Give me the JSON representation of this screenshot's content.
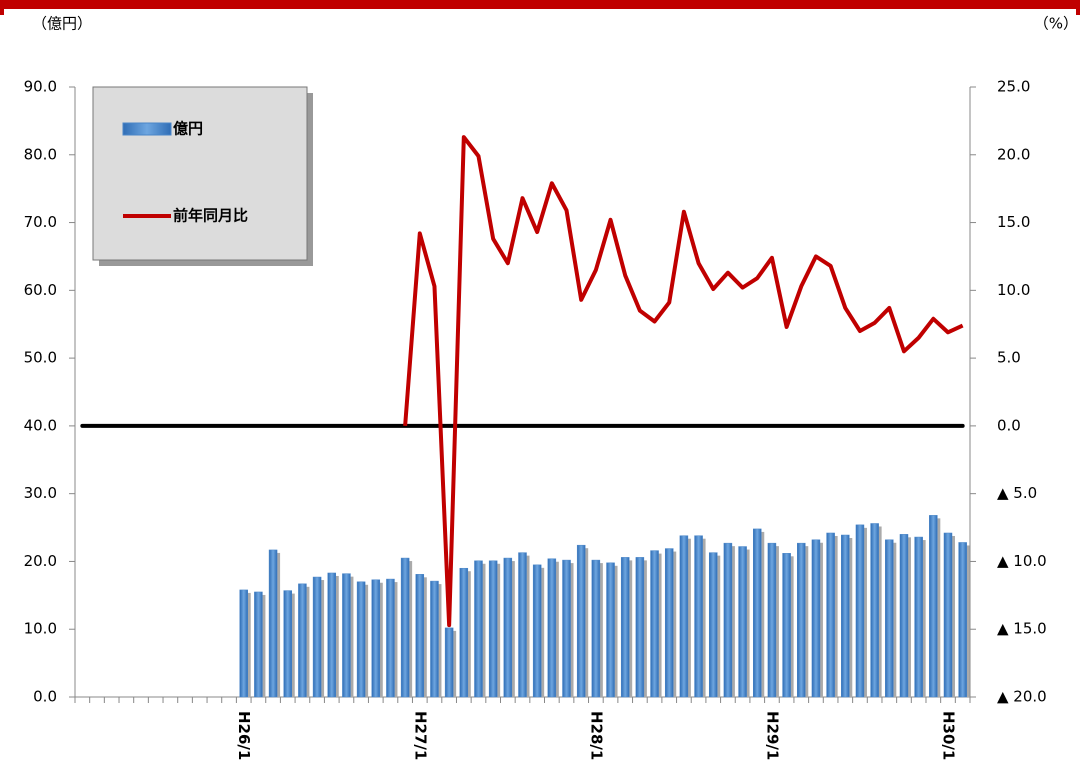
{
  "chart_data": {
    "type": "bar-line",
    "y_unit_label": "（億円）",
    "y2_unit_label": "（%）",
    "categories": [
      null,
      null,
      null,
      null,
      null,
      null,
      null,
      null,
      null,
      null,
      null,
      "H26/1",
      null,
      null,
      null,
      null,
      null,
      null,
      null,
      null,
      null,
      null,
      null,
      "H27/1",
      null,
      null,
      null,
      null,
      null,
      null,
      null,
      null,
      null,
      null,
      null,
      "H28/1",
      null,
      null,
      null,
      null,
      null,
      null,
      null,
      null,
      null,
      null,
      null,
      "H29/1",
      null,
      null,
      null,
      null,
      null,
      null,
      null,
      null,
      null,
      null,
      null,
      "H30/1",
      null
    ],
    "series": [
      {
        "name": "億円",
        "type": "bar",
        "color": "#4a86c8",
        "values": [
          null,
          null,
          null,
          null,
          null,
          null,
          null,
          null,
          null,
          null,
          null,
          15.8,
          15.5,
          21.7,
          15.7,
          16.7,
          17.7,
          18.3,
          18.2,
          17.0,
          17.3,
          17.4,
          20.5,
          18.1,
          17.1,
          10.2,
          19.0,
          20.1,
          20.1,
          20.5,
          21.3,
          19.5,
          20.4,
          20.2,
          22.4,
          20.2,
          19.8,
          20.6,
          20.6,
          21.6,
          21.9,
          23.8,
          23.8,
          21.3,
          22.7,
          22.2,
          24.8,
          22.7,
          21.2,
          22.7,
          23.2,
          24.2,
          23.9,
          25.4,
          25.6,
          23.2,
          24.0,
          23.6,
          26.8,
          24.2,
          22.8
        ]
      },
      {
        "name": "前年同月比",
        "type": "line",
        "axis": "y2",
        "color": "#c00000",
        "values": [
          null,
          null,
          null,
          null,
          null,
          null,
          null,
          null,
          null,
          null,
          null,
          null,
          null,
          null,
          null,
          null,
          null,
          null,
          null,
          null,
          null,
          null,
          0.0,
          14.2,
          10.3,
          -14.7,
          21.3,
          19.9,
          13.8,
          12.0,
          16.8,
          14.3,
          17.9,
          15.9,
          9.3,
          11.5,
          15.2,
          11.1,
          8.5,
          7.7,
          9.1,
          15.8,
          12.0,
          10.1,
          11.3,
          10.2,
          10.9,
          12.4,
          7.3,
          10.3,
          12.5,
          11.8,
          8.7,
          7.0,
          7.6,
          8.7,
          5.5,
          6.5,
          7.9,
          6.9,
          7.4
        ]
      }
    ],
    "ylim": [
      0,
      90
    ],
    "yticks": [
      {
        "value": 0,
        "label": "0.0"
      },
      {
        "value": 10,
        "label": "10.0"
      },
      {
        "value": 20,
        "label": "20.0"
      },
      {
        "value": 30,
        "label": "30.0"
      },
      {
        "value": 40,
        "label": "40.0"
      },
      {
        "value": 50,
        "label": "50.0"
      },
      {
        "value": 60,
        "label": "60.0"
      },
      {
        "value": 70,
        "label": "70.0"
      },
      {
        "value": 80,
        "label": "80.0"
      },
      {
        "value": 90,
        "label": "90.0"
      }
    ],
    "y2lim": [
      -20,
      25
    ],
    "y2ticks": [
      {
        "value": 25,
        "label": "25.0"
      },
      {
        "value": 20,
        "label": "20.0"
      },
      {
        "value": 15,
        "label": "15.0"
      },
      {
        "value": 10,
        "label": "10.0"
      },
      {
        "value": 5,
        "label": "5.0"
      },
      {
        "value": 0,
        "label": "0.0"
      },
      {
        "value": -5,
        "label": "▲ 5.0"
      },
      {
        "value": -10,
        "label": "▲ 10.0"
      },
      {
        "value": -15,
        "label": "▲ 15.0"
      },
      {
        "value": -20,
        "label": "▲ 20.0"
      }
    ],
    "zero_line": true,
    "legend_position": "upper left"
  }
}
